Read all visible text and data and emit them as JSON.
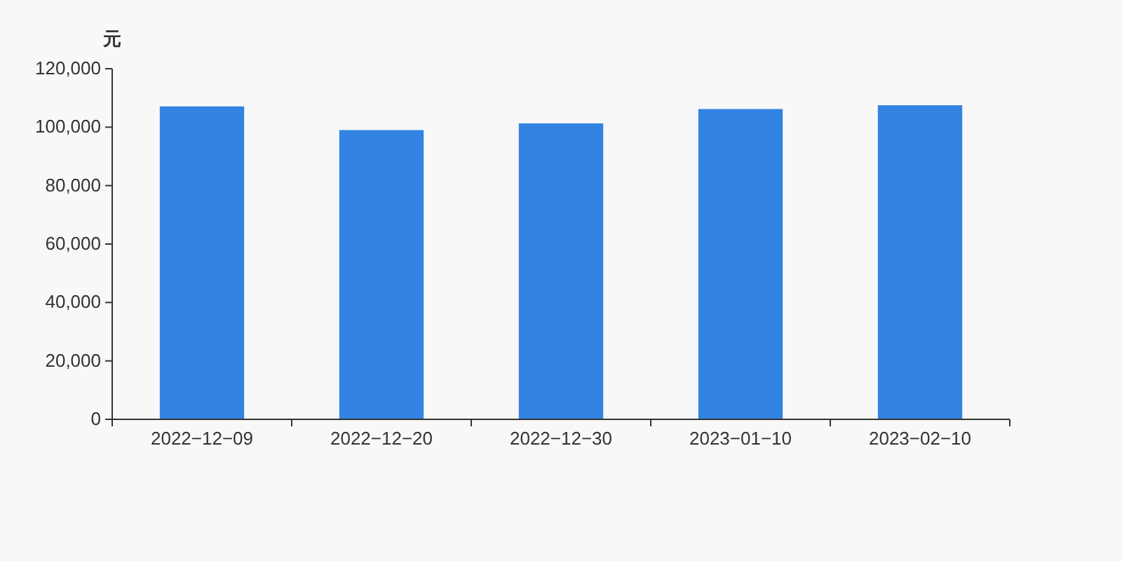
{
  "chart_data": {
    "type": "bar",
    "ylabel": "元",
    "categories": [
      "2022−12−09",
      "2022−12−20",
      "2022−12−30",
      "2023−01−10",
      "2023−02−10"
    ],
    "values": [
      107100,
      99000,
      101300,
      106200,
      107500
    ],
    "color": "#3383e2",
    "ylim": [
      0,
      120000
    ],
    "yticks": [
      {
        "value": 0,
        "label": "0"
      },
      {
        "value": 20000,
        "label": "20,000"
      },
      {
        "value": 40000,
        "label": "40,000"
      },
      {
        "value": 60000,
        "label": "60,000"
      },
      {
        "value": 80000,
        "label": "80,000"
      },
      {
        "value": 100000,
        "label": "100,000"
      },
      {
        "value": 120000,
        "label": "120,000"
      }
    ],
    "grid": false
  }
}
